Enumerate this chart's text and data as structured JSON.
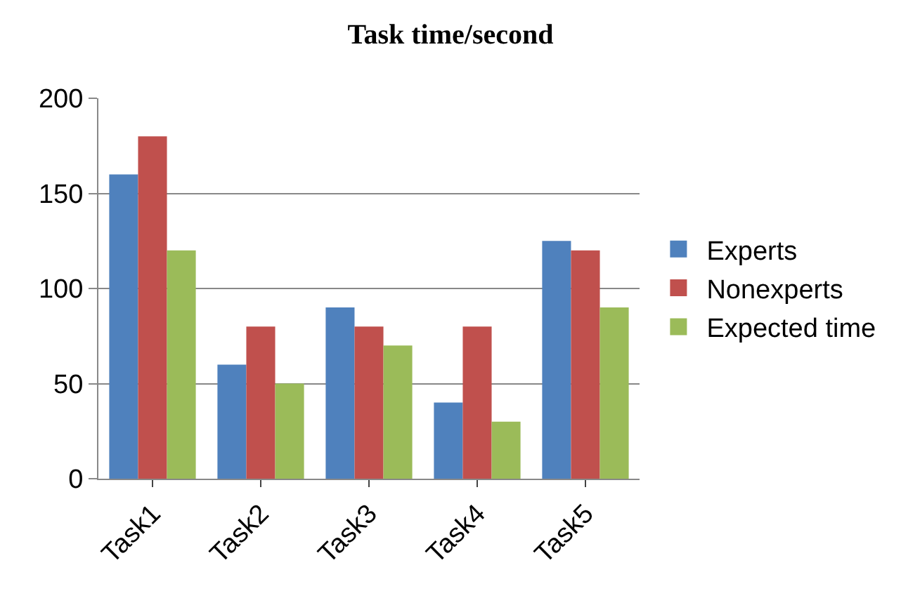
{
  "chart_data": {
    "type": "bar",
    "title": "Task time/second",
    "categories": [
      "Task1",
      "Task2",
      "Task3",
      "Task4",
      "Task5"
    ],
    "series": [
      {
        "name": "Experts",
        "color": "#4f81bd",
        "values": [
          160,
          60,
          90,
          40,
          125
        ]
      },
      {
        "name": "Nonexperts",
        "color": "#c0504d",
        "values": [
          180,
          80,
          80,
          80,
          120
        ]
      },
      {
        "name": "Expected time",
        "color": "#9bbb59",
        "values": [
          120,
          50,
          70,
          30,
          90
        ]
      }
    ],
    "ylim": [
      0,
      200
    ],
    "yticks": [
      0,
      50,
      100,
      150,
      200
    ],
    "grid": "y",
    "legend": "right"
  }
}
